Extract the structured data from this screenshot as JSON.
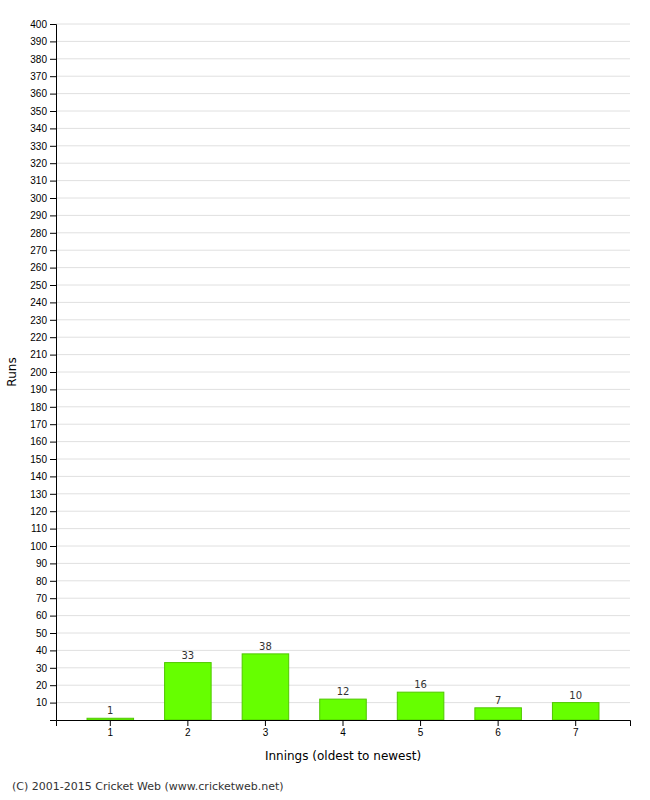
{
  "chart_data": {
    "type": "bar",
    "categories": [
      "1",
      "2",
      "3",
      "4",
      "5",
      "6",
      "7"
    ],
    "values": [
      1,
      33,
      38,
      12,
      16,
      7,
      10
    ],
    "color": "#66ff00",
    "xlabel": "Innings (oldest to newest)",
    "ylabel": "Runs",
    "ylim": [
      0,
      400
    ],
    "yticks": [
      10,
      20,
      30,
      40,
      50,
      60,
      70,
      80,
      90,
      100,
      110,
      120,
      130,
      140,
      150,
      160,
      170,
      180,
      190,
      200,
      210,
      220,
      230,
      240,
      250,
      260,
      270,
      280,
      290,
      300,
      310,
      320,
      330,
      340,
      350,
      360,
      370,
      380,
      390,
      400
    ],
    "grid": true,
    "data_labels": true,
    "footer": "(C) 2001-2015 Cricket Web (www.cricketweb.net)"
  }
}
